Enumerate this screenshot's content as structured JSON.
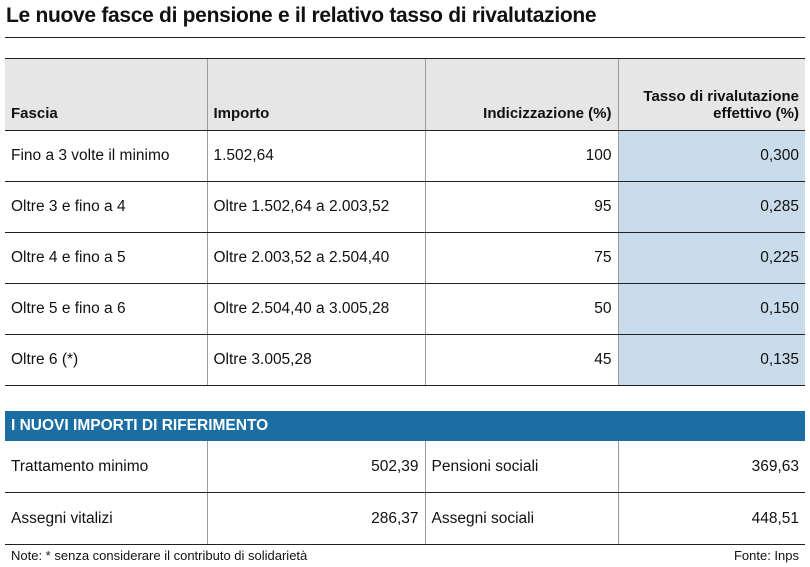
{
  "title": "Le nuove fasce di pensione e il relativo tasso di rivalutazione",
  "table": {
    "headers": [
      "Fascia",
      "Importo",
      "Indicizzazione (%)",
      "Tasso di rivalutazione effettivo (%)"
    ],
    "rows": [
      [
        "Fino a 3 volte il minimo",
        "1.502,64",
        "100",
        "0,300"
      ],
      [
        "Oltre 3 e fino a 4",
        "Oltre 1.502,64 a 2.003,52",
        "95",
        "0,285"
      ],
      [
        "Oltre 4 e fino a 5",
        "Oltre 2.003,52 a 2.504,40",
        "75",
        "0,225"
      ],
      [
        "Oltre 5 e fino a 6",
        "Oltre 2.504,40 a 3.005,28",
        "50",
        "0,150"
      ],
      [
        "Oltre 6 (*)",
        "Oltre 3.005,28",
        "45",
        "0,135"
      ]
    ]
  },
  "reference": {
    "title": "I NUOVI IMPORTI DI RIFERIMENTO",
    "rows": [
      [
        "Trattamento minimo",
        "502,39",
        "Pensioni sociali",
        "369,63"
      ],
      [
        "Assegni vitalizi",
        "286,37",
        "Assegni sociali",
        "448,51"
      ]
    ]
  },
  "note": "Note: * senza considerare il contributo di solidarietà",
  "source": "Fonte: Inps"
}
